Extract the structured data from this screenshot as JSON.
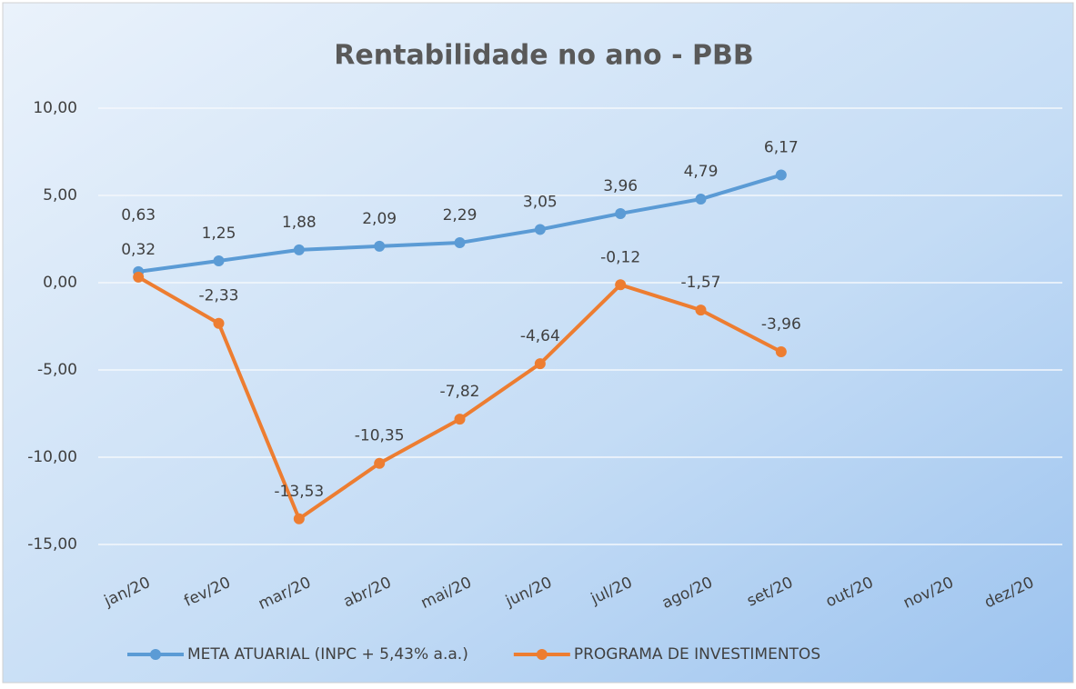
{
  "chart_data": {
    "type": "line",
    "title": "Rentabilidade no ano - PBB",
    "categories": [
      "jan/20",
      "fev/20",
      "mar/20",
      "abr/20",
      "mai/20",
      "jun/20",
      "jul/20",
      "ago/20",
      "set/20",
      "out/20",
      "nov/20",
      "dez/20"
    ],
    "series": [
      {
        "name": "META ATUARIAL (INPC + 5,43% a.a.)",
        "color": "#5b9bd5",
        "values": [
          0.63,
          1.25,
          1.88,
          2.09,
          2.29,
          3.05,
          3.96,
          4.79,
          6.17,
          null,
          null,
          null
        ],
        "value_labels": [
          "0,63",
          "1,25",
          "1,88",
          "2,09",
          "2,29",
          "3,05",
          "3,96",
          "4,79",
          "6,17",
          null,
          null,
          null
        ]
      },
      {
        "name": "PROGRAMA DE INVESTIMENTOS",
        "color": "#ed7d31",
        "values": [
          0.32,
          -2.33,
          -13.53,
          -10.35,
          -7.82,
          -4.64,
          -0.12,
          -1.57,
          -3.96,
          null,
          null,
          null
        ],
        "value_labels": [
          "0,32",
          "-2,33",
          "-13,53",
          "-10,35",
          "-7,82",
          "-4,64",
          "-0,12",
          "-1,57",
          "-3,96",
          null,
          null,
          null
        ]
      }
    ],
    "ylim": [
      -15,
      10
    ],
    "yticks": [
      {
        "value": -15,
        "label": "-15,00"
      },
      {
        "value": -10,
        "label": "-10,00"
      },
      {
        "value": -5,
        "label": "-5,00"
      },
      {
        "value": 0,
        "label": "0,00"
      },
      {
        "value": 5,
        "label": "5,00"
      },
      {
        "value": 10,
        "label": "10,00"
      }
    ],
    "grid": true,
    "legend": "bottom"
  }
}
